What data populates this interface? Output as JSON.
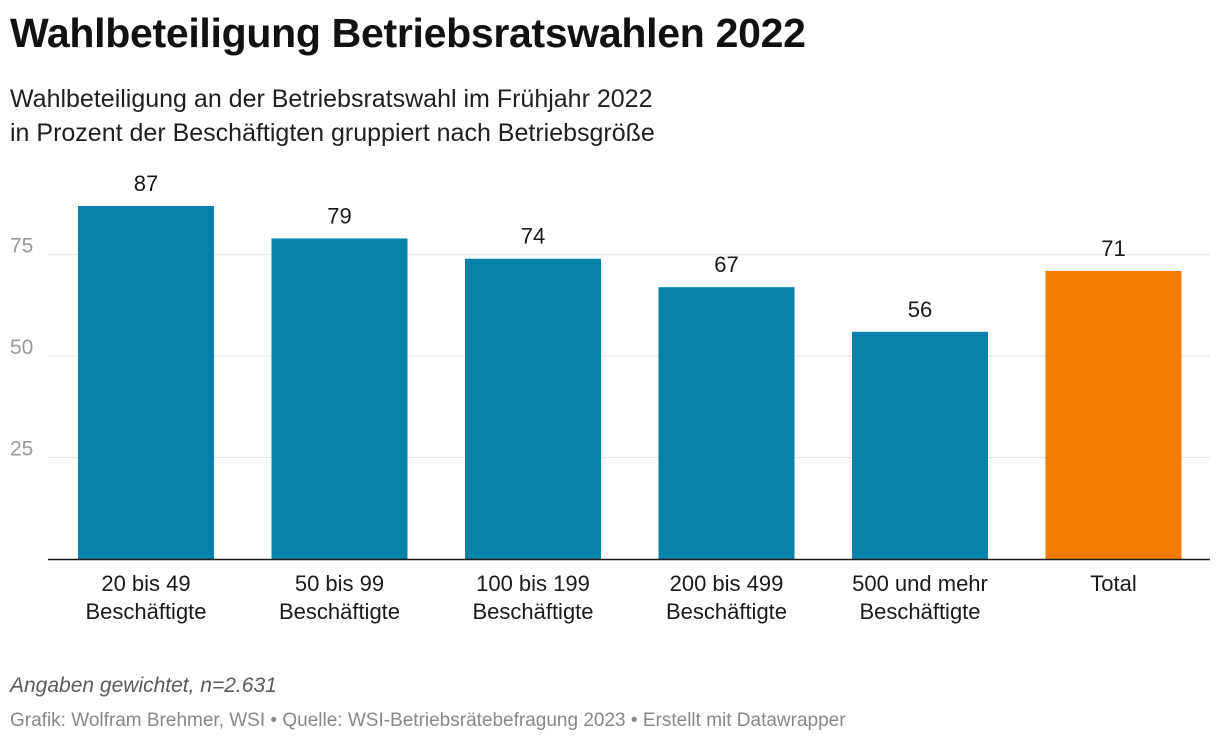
{
  "header": {
    "title": "Wahlbeteiligung Betriebsratswahlen 2022",
    "subtitle_line1": "Wahlbeteiligung an der Betriebsratswahl im Frühjahr 2022",
    "subtitle_line2": "in Prozent der Beschäftigten gruppiert nach Betriebsgröße"
  },
  "footer": {
    "note": "Angaben gewichtet, n=2.631",
    "credit_grafik": "Grafik: Wolfram Brehmer, WSI",
    "credit_quelle": "Quelle: WSI-Betriebsrätebefragung 2023",
    "credit_tool": "Erstellt mit Datawrapper",
    "separator": "•"
  },
  "colors": {
    "bar": "#0881ab",
    "highlight": "#f07d00",
    "grid": "#e3e3e3",
    "axis": "#1a1a1a",
    "tick_label": "#9a9a9a"
  },
  "chart_data": {
    "type": "bar",
    "categories": [
      [
        "20 bis 49",
        "Beschäftigte"
      ],
      [
        "50 bis 99",
        "Beschäftigte"
      ],
      [
        "100 bis 199",
        "Beschäftigte"
      ],
      [
        "200 bis 499",
        "Beschäftigte"
      ],
      [
        "500 und mehr",
        "Beschäftigte"
      ],
      [
        "Total"
      ]
    ],
    "values": [
      87,
      79,
      74,
      67,
      56,
      71
    ],
    "highlight_index": 5,
    "yticks": [
      25,
      50,
      75
    ],
    "ylim": [
      0,
      87
    ],
    "grid": true,
    "legend": "none"
  }
}
